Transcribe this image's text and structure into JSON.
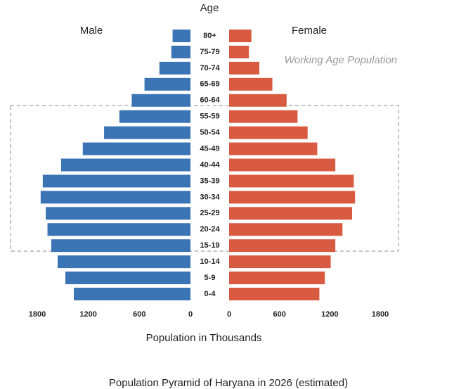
{
  "chart_data": {
    "type": "pyramid",
    "title": "Population Pyramid of Haryana in 2026 (estimated)",
    "center_label": "Age",
    "x_label": "Population in Thousands",
    "annotation": "Working Age Population",
    "categories": [
      "0-4",
      "5-9",
      "10-14",
      "15-19",
      "20-24",
      "25-29",
      "30-34",
      "35-39",
      "40-44",
      "45-49",
      "50-54",
      "55-59",
      "60-64",
      "65-69",
      "70-74",
      "75-79",
      "80+"
    ],
    "series": [
      {
        "name": "Male",
        "color": "#3a74b5",
        "values": [
          1370,
          1470,
          1560,
          1635,
          1680,
          1700,
          1760,
          1735,
          1520,
          1265,
          1015,
          835,
          690,
          540,
          365,
          225,
          210
        ]
      },
      {
        "name": "Female",
        "color": "#d85a41",
        "values": [
          1075,
          1140,
          1210,
          1265,
          1350,
          1465,
          1500,
          1485,
          1265,
          1050,
          935,
          815,
          685,
          515,
          360,
          235,
          265
        ]
      }
    ],
    "xlim": [
      0,
      1800
    ],
    "xticks": [
      0,
      600,
      1200,
      1800
    ]
  }
}
